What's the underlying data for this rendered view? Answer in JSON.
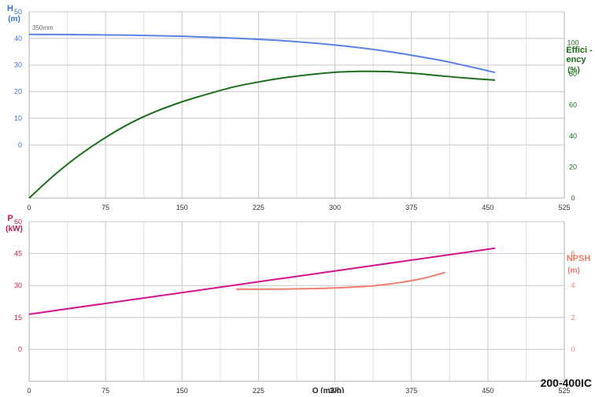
{
  "chart_data": [
    {
      "type": "line",
      "x_ticks": [
        0,
        75,
        150,
        225,
        300,
        375,
        450,
        525
      ],
      "xlim": [
        0,
        525
      ],
      "grid": true,
      "left_axis": {
        "title_line1": "H",
        "title_line2": "(m)",
        "ylim": [
          -20,
          50
        ],
        "ticks": [
          0,
          10,
          20,
          30,
          40,
          50
        ],
        "color": "#3a6fd8"
      },
      "right_axis": {
        "title_line1": "Effici -",
        "title_line2": "ency",
        "title_line3": "(%)",
        "ylim": [
          0,
          120
        ],
        "ticks": [
          0,
          20,
          40,
          60,
          80,
          100
        ],
        "color": "#1a6b1a"
      },
      "series": [
        {
          "name": "350mm",
          "axis": "left",
          "color": "#5a82e6",
          "x": [
            0,
            50,
            100,
            150,
            200,
            250,
            300,
            350,
            400,
            430,
            457
          ],
          "y": [
            41.5,
            41.4,
            41.2,
            40.8,
            40.1,
            39.1,
            37.5,
            35.2,
            32.0,
            29.6,
            27.2
          ]
        },
        {
          "axis": "right",
          "color": "#1d6e1d",
          "x": [
            0,
            25,
            50,
            75,
            100,
            125,
            150,
            175,
            200,
            225,
            250,
            275,
            300,
            325,
            350,
            375,
            400,
            425,
            457
          ],
          "y": [
            0,
            15,
            28,
            39,
            48.5,
            56,
            62,
            67,
            71.5,
            74.8,
            77.5,
            79.5,
            81,
            81.6,
            81.5,
            80.5,
            79,
            77.5,
            76
          ]
        }
      ]
    },
    {
      "type": "line",
      "x_ticks": [
        0,
        75,
        150,
        225,
        300,
        375,
        450,
        525
      ],
      "xlim": [
        0,
        525
      ],
      "grid": true,
      "xlabel": "Q (m3/h)",
      "left_axis": {
        "title_line1": "P",
        "title_line2": "(kW)",
        "ylim": [
          -15,
          60
        ],
        "ticks": [
          0,
          15,
          30,
          45,
          60
        ],
        "color": "#c0185a"
      },
      "right_axis": {
        "title_line1": "NPSH",
        "title_line2": "(m)",
        "ylim": [
          -2,
          8
        ],
        "ticks": [
          0,
          2,
          4,
          6
        ],
        "color": "#f07a6a"
      },
      "series": [
        {
          "axis": "left",
          "color": "#d4148c",
          "x": [
            0,
            457
          ],
          "y": [
            16.5,
            47.5
          ]
        },
        {
          "axis": "right",
          "color": "#f47f70",
          "x": [
            203,
            250,
            300,
            340,
            370,
            390,
            408
          ],
          "y": [
            3.77,
            3.78,
            3.85,
            4.0,
            4.25,
            4.5,
            4.82
          ]
        }
      ]
    }
  ],
  "model_label": "200-400IC"
}
